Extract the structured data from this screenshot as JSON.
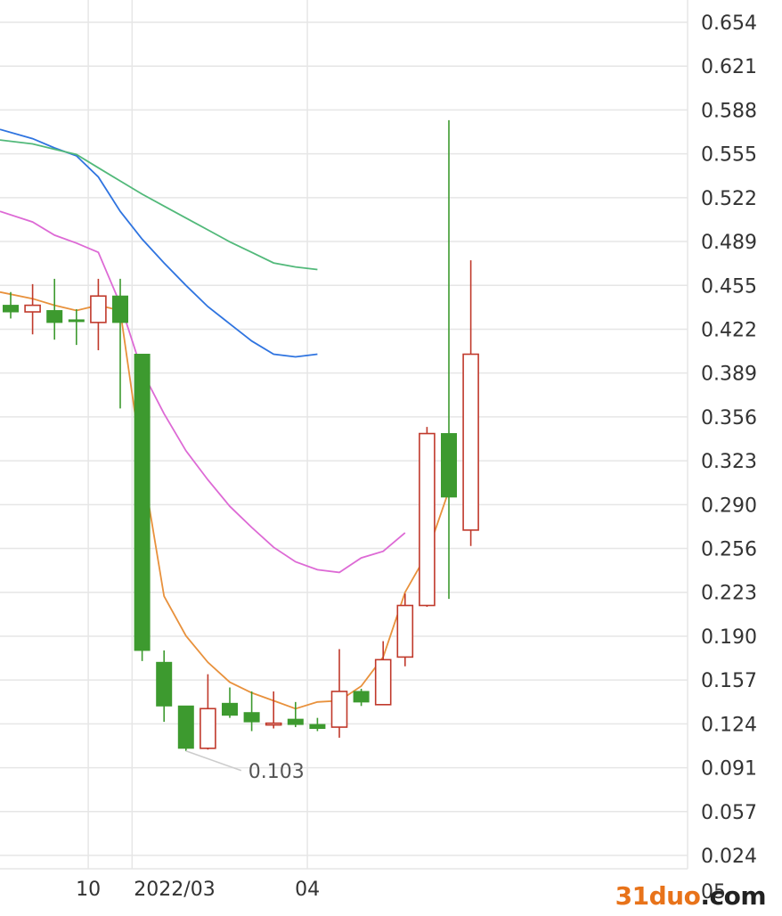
{
  "chart_data": {
    "type": "candlestick",
    "y_ticks": [
      "0.654",
      "0.621",
      "0.588",
      "0.555",
      "0.522",
      "0.489",
      "0.455",
      "0.422",
      "0.389",
      "0.356",
      "0.323",
      "0.290",
      "0.256",
      "0.223",
      "0.190",
      "0.157",
      "0.124",
      "0.091",
      "0.057",
      "0.024",
      "05"
    ],
    "ylim": [
      0.024,
      0.654
    ],
    "x_labels": [
      {
        "label": "10",
        "index": 3.5
      },
      {
        "label": "2022/03",
        "index": 5.5
      },
      {
        "label": "04",
        "index": 13.5
      }
    ],
    "candles": [
      {
        "o": 0.44,
        "h": 0.45,
        "l": 0.43,
        "c": 0.435
      },
      {
        "o": 0.435,
        "h": 0.456,
        "l": 0.418,
        "c": 0.44
      },
      {
        "o": 0.436,
        "h": 0.46,
        "l": 0.414,
        "c": 0.427
      },
      {
        "o": 0.429,
        "h": 0.437,
        "l": 0.41,
        "c": 0.428
      },
      {
        "o": 0.427,
        "h": 0.46,
        "l": 0.406,
        "c": 0.447
      },
      {
        "o": 0.447,
        "h": 0.46,
        "l": 0.362,
        "c": 0.427
      },
      {
        "o": 0.403,
        "h": 0.403,
        "l": 0.171,
        "c": 0.179
      },
      {
        "o": 0.17,
        "h": 0.179,
        "l": 0.125,
        "c": 0.137
      },
      {
        "o": 0.137,
        "h": 0.137,
        "l": 0.103,
        "c": 0.105
      },
      {
        "o": 0.105,
        "h": 0.161,
        "l": 0.104,
        "c": 0.135
      },
      {
        "o": 0.139,
        "h": 0.151,
        "l": 0.128,
        "c": 0.13
      },
      {
        "o": 0.132,
        "h": 0.148,
        "l": 0.118,
        "c": 0.125
      },
      {
        "o": 0.123,
        "h": 0.148,
        "l": 0.12,
        "c": 0.124
      },
      {
        "o": 0.127,
        "h": 0.14,
        "l": 0.121,
        "c": 0.123
      },
      {
        "o": 0.123,
        "h": 0.128,
        "l": 0.118,
        "c": 0.12
      },
      {
        "o": 0.121,
        "h": 0.18,
        "l": 0.113,
        "c": 0.148
      },
      {
        "o": 0.148,
        "h": 0.15,
        "l": 0.137,
        "c": 0.14
      },
      {
        "o": 0.138,
        "h": 0.186,
        "l": 0.138,
        "c": 0.172
      },
      {
        "o": 0.174,
        "h": 0.222,
        "l": 0.167,
        "c": 0.213
      },
      {
        "o": 0.213,
        "h": 0.348,
        "l": 0.212,
        "c": 0.343
      },
      {
        "o": 0.343,
        "h": 0.58,
        "l": 0.218,
        "c": 0.295
      },
      {
        "o": 0.27,
        "h": 0.474,
        "l": 0.258,
        "c": 0.403
      }
    ],
    "ma_lines": [
      {
        "color": "#e8913c",
        "values": [
          0.45,
          0.445,
          0.44,
          0.436,
          0.44,
          0.436,
          0.32,
          0.22,
          0.19,
          0.17,
          0.155,
          0.147,
          0.141,
          0.135,
          0.14,
          0.141,
          0.152,
          0.174,
          0.223,
          0.252,
          0.3,
          null
        ]
      },
      {
        "color": "#dd6ad5",
        "values": [
          0.511,
          0.503,
          0.493,
          0.487,
          0.48,
          0.441,
          0.39,
          0.358,
          0.33,
          0.308,
          0.288,
          0.272,
          0.257,
          0.246,
          0.24,
          0.238,
          0.249,
          0.254,
          0.268,
          null,
          null,
          null
        ]
      },
      {
        "color": "#2f74e0",
        "values": [
          0.573,
          0.566,
          0.559,
          0.553,
          0.537,
          0.511,
          0.49,
          0.472,
          0.455,
          0.439,
          0.426,
          0.413,
          0.403,
          0.401,
          0.403,
          null,
          null,
          null,
          null,
          null,
          null,
          null
        ]
      },
      {
        "color": "#52b97a",
        "values": [
          0.565,
          0.562,
          0.558,
          0.554,
          0.544,
          0.534,
          0.524,
          0.515,
          0.506,
          0.497,
          0.488,
          0.48,
          0.472,
          0.469,
          0.467,
          null,
          null,
          null,
          null,
          null,
          null,
          null
        ]
      }
    ],
    "colors": {
      "up": "#c0392b",
      "down": "#3d9a2f",
      "grid": "#e6e6e6",
      "axis_text": "#333333"
    },
    "annotation": {
      "label": "0.103",
      "value": 0.103,
      "candle_index": 8
    }
  },
  "watermark": {
    "part1": "31duo",
    "part2": ".com"
  }
}
